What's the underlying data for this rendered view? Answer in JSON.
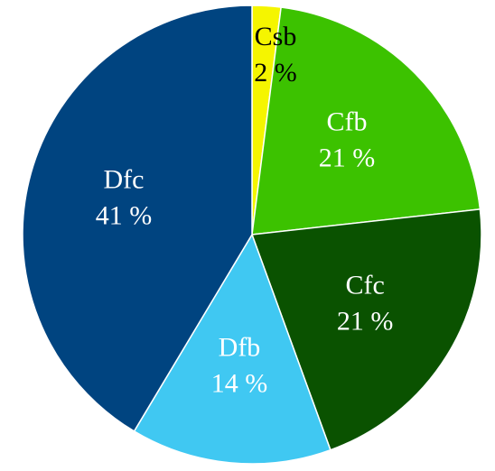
{
  "chart_data": {
    "type": "pie",
    "title": "",
    "slices": [
      {
        "label": "Csb",
        "value": 2,
        "value_label": "2 %",
        "color": "#f5f500",
        "text_color": "#000000"
      },
      {
        "label": "Cfb",
        "value": 21,
        "value_label": "21 %",
        "color": "#3cc200",
        "text_color": "#ffffff"
      },
      {
        "label": "Cfc",
        "value": 21,
        "value_label": "21 %",
        "color": "#0a5200",
        "text_color": "#ffffff"
      },
      {
        "label": "Dfb",
        "value": 14,
        "value_label": "14 %",
        "color": "#40c8f2",
        "text_color": "#ffffff"
      },
      {
        "label": "Dfc",
        "value": 41,
        "value_label": "41 %",
        "color": "#004480",
        "text_color": "#ffffff"
      }
    ],
    "start": "12 o'clock",
    "direction": "clockwise",
    "legend": "none"
  }
}
